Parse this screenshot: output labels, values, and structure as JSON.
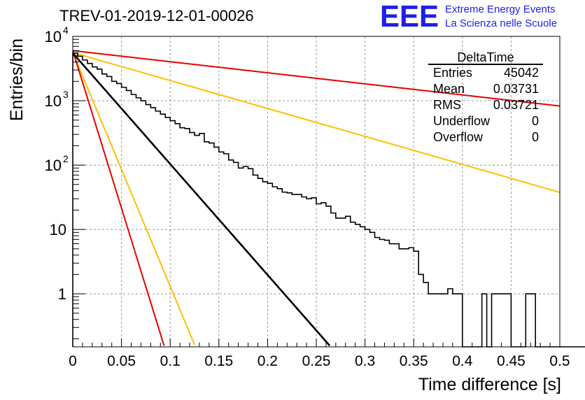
{
  "title": "TREV-01-2019-12-01-00026",
  "logo": {
    "text": "EEE",
    "line1": "Extreme Energy Events",
    "line2": "La Scienza nelle Scuole",
    "color": "#1f1fe6"
  },
  "stats": {
    "title": "DeltaTime",
    "rows": [
      {
        "label": "Entries",
        "value": "45042"
      },
      {
        "label": "Mean",
        "value": "0.03731"
      },
      {
        "label": "RMS",
        "value": "0.03721"
      },
      {
        "label": "Underflow",
        "value": "0"
      },
      {
        "label": "Overflow",
        "value": "0"
      }
    ]
  },
  "chart_data": {
    "type": "line",
    "title": "TREV-01-2019-12-01-00026",
    "xlabel": "Time difference [s]",
    "ylabel": "Entries/bin",
    "xlim": [
      0,
      0.5
    ],
    "ylim": [
      0.15,
      10000
    ],
    "yscale": "log",
    "grid": true,
    "xticks": [
      {
        "v": 0,
        "label": "0"
      },
      {
        "v": 0.05,
        "label": "0.05"
      },
      {
        "v": 0.1,
        "label": "0.1"
      },
      {
        "v": 0.15,
        "label": "0.15"
      },
      {
        "v": 0.2,
        "label": "0.2"
      },
      {
        "v": 0.25,
        "label": "0.25"
      },
      {
        "v": 0.3,
        "label": "0.3"
      },
      {
        "v": 0.35,
        "label": "0.35"
      },
      {
        "v": 0.4,
        "label": "0.4"
      },
      {
        "v": 0.45,
        "label": "0.45"
      },
      {
        "v": 0.5,
        "label": "0.5"
      }
    ],
    "yticks": [
      {
        "v": 1,
        "label": "1"
      },
      {
        "v": 10,
        "label": "10"
      },
      {
        "v": 100,
        "label": "10",
        "exp": "2"
      },
      {
        "v": 1000,
        "label": "10",
        "exp": "3"
      },
      {
        "v": 10000,
        "label": "10",
        "exp": "4"
      }
    ],
    "histogram": {
      "bin_width": 0.005,
      "color": "#000000",
      "values": [
        5500,
        4900,
        4300,
        3800,
        3350,
        3100,
        2600,
        2380,
        2000,
        1850,
        1620,
        1440,
        1250,
        1110,
        1000,
        870,
        780,
        690,
        620,
        550,
        490,
        440,
        380,
        370,
        320,
        290,
        310,
        230,
        220,
        190,
        160,
        150,
        120,
        110,
        90,
        95,
        88,
        70,
        62,
        55,
        52,
        46,
        43,
        38,
        37,
        35,
        35,
        32,
        30,
        31,
        25,
        26,
        23,
        18,
        15,
        15,
        16,
        13,
        12,
        11,
        10,
        9,
        7.5,
        7,
        6.8,
        6,
        6,
        5,
        5,
        5.2,
        4.6,
        2,
        1.5,
        1,
        1,
        1,
        1,
        1.2,
        1,
        1,
        0.1,
        0.1,
        0.1,
        0,
        1,
        0,
        1,
        1,
        1,
        1,
        0,
        0,
        0,
        1,
        1,
        0,
        0,
        0,
        0,
        0,
        0,
        0,
        0,
        0,
        0,
        0,
        0,
        0,
        0,
        0
      ]
    },
    "fit": {
      "color": "#000000",
      "a": 5500,
      "tau": 0.0252
    },
    "reference_lines": [
      {
        "color": "#e60000",
        "a": 6000,
        "tau": 0.2525
      },
      {
        "color": "#ffc000",
        "a": 5600,
        "tau": 0.1
      },
      {
        "color": "#ffc000",
        "a": 5600,
        "tau": 0.01196
      },
      {
        "color": "#e60000",
        "a": 6000,
        "tau": 0.00888
      }
    ]
  }
}
